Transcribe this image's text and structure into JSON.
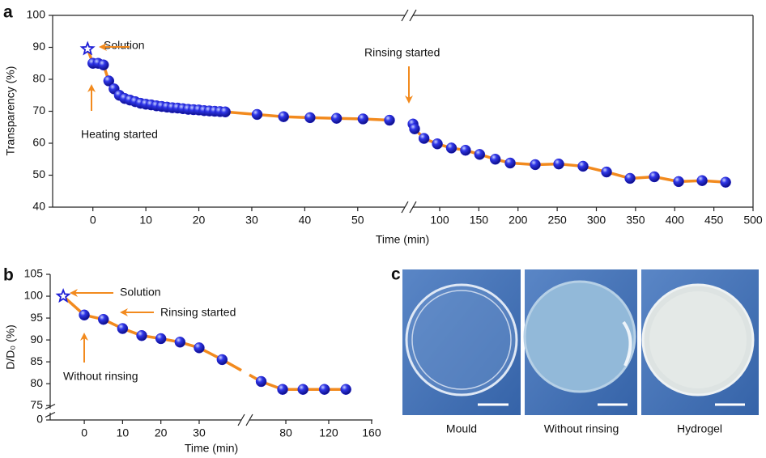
{
  "panel_labels": [
    "a",
    "b",
    "c"
  ],
  "chart_data": [
    {
      "type": "line",
      "x_label": "Time (min)",
      "y_label": "Transparency (%)",
      "ylim": [
        40,
        100
      ],
      "yticks": [
        40,
        50,
        60,
        70,
        80,
        90,
        100
      ],
      "x_segments": [
        {
          "xlim": [
            -7.6,
            58.9
          ],
          "xticks": [
            0,
            10,
            20,
            30,
            40,
            50
          ]
        },
        {
          "xlim": [
            65.9,
            500
          ],
          "xticks": [
            100,
            150,
            200,
            250,
            300,
            350,
            400,
            450,
            500
          ]
        }
      ],
      "line_color": "#f28a1e",
      "marker_color": "#1f1fd6",
      "start": {
        "x": -1,
        "y": 89.5
      },
      "x": [
        0,
        1,
        2,
        3,
        4,
        5,
        6,
        7,
        8,
        9,
        10,
        11,
        12,
        13,
        14,
        15,
        16,
        17,
        18,
        19,
        20,
        21,
        22,
        23,
        24,
        25,
        31,
        36,
        41,
        46,
        51,
        56,
        66,
        68,
        80,
        97,
        115,
        133,
        151,
        171,
        190,
        222,
        252,
        283,
        313,
        343,
        374,
        405,
        435,
        465
      ],
      "values": [
        85,
        85,
        84.5,
        79.5,
        77,
        75,
        74,
        73.5,
        73,
        72.5,
        72.2,
        72,
        71.7,
        71.5,
        71.3,
        71.1,
        71,
        70.8,
        70.6,
        70.5,
        70.4,
        70.2,
        70.1,
        70,
        69.9,
        69.8,
        69,
        68.3,
        68,
        67.8,
        67.6,
        67.2,
        66,
        64.5,
        61.5,
        59.8,
        58.5,
        57.8,
        56.5,
        55,
        53.8,
        53.3,
        53.5,
        52.8,
        51,
        49,
        49.5,
        48,
        48.3,
        47.8
      ],
      "line_across_break": false,
      "annotations": [
        {
          "text": "Solution"
        },
        {
          "text": "Heating started"
        },
        {
          "text": "Rinsing started"
        }
      ]
    },
    {
      "type": "line",
      "x_label": "Time (min)",
      "y_label": "D/D₀ (%)",
      "y_segments": [
        {
          "ylim": [
            0,
            1.7
          ],
          "yticks": [
            0
          ]
        },
        {
          "ylim": [
            74.3,
            105
          ],
          "yticks": [
            75,
            80,
            85,
            90,
            95,
            100,
            105
          ]
        }
      ],
      "x_segments": [
        {
          "xlim": [
            -8.9,
            41
          ],
          "xticks": [
            0,
            10,
            20,
            30
          ]
        },
        {
          "xlim": [
            46,
            160.8
          ],
          "xticks": [
            80,
            120,
            160
          ]
        }
      ],
      "line_color": "#f28a1e",
      "marker_color": "#1f1fd6",
      "start": {
        "x": -5.5,
        "y": 100
      },
      "x": [
        0,
        5,
        10,
        15,
        20,
        25,
        30,
        36,
        57,
        77,
        96,
        116,
        136
      ],
      "values": [
        95.7,
        94.7,
        92.6,
        91,
        90.3,
        89.5,
        88.2,
        85.5,
        80.5,
        78.7,
        78.7,
        78.7,
        78.7
      ],
      "line_across_break": true,
      "annotations": [
        {
          "text": "Solution"
        },
        {
          "text": "Rinsing started"
        },
        {
          "text": "Without rinsing"
        }
      ]
    }
  ],
  "photos": {
    "labels": [
      "Mould",
      "Without rinsing",
      "Hydrogel"
    ]
  }
}
